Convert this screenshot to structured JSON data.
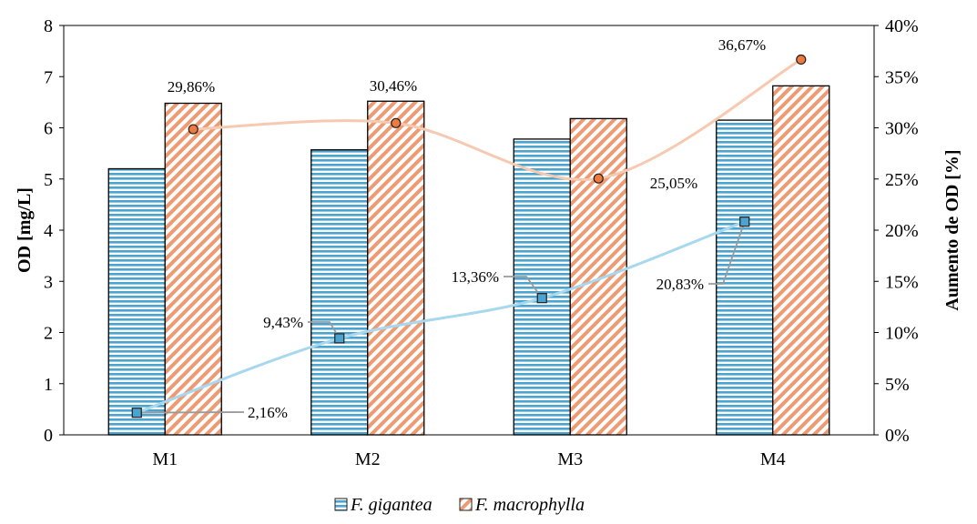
{
  "chart_data": {
    "type": "bar",
    "categories": [
      "M1",
      "M2",
      "M3",
      "M4"
    ],
    "y_left": {
      "label": "OD [mg/L]",
      "range": [
        0,
        8
      ],
      "ticks": [
        "0",
        "1",
        "2",
        "3",
        "4",
        "5",
        "6",
        "7",
        "8"
      ]
    },
    "y_right": {
      "label": "Aumento de OD [%]",
      "range": [
        0,
        40
      ],
      "ticks": [
        "0%",
        "5%",
        "10%",
        "15%",
        "20%",
        "25%",
        "30%",
        "35%",
        "40%"
      ]
    },
    "series": [
      {
        "name": "F. gigantea",
        "values": [
          5.2,
          5.57,
          5.78,
          6.15
        ],
        "percent_values": [
          2.16,
          9.43,
          13.36,
          20.83
        ],
        "percent_labels": [
          "2,16%",
          "9,43%",
          "13,36%",
          "20,83%"
        ],
        "bar_color": "#4BA3CF",
        "line_color": "#A8D8EE",
        "pattern": "horizontal-stripes"
      },
      {
        "name": "F. macrophylla",
        "values": [
          6.48,
          6.52,
          6.18,
          6.82
        ],
        "percent_values": [
          29.86,
          30.46,
          25.05,
          36.67
        ],
        "percent_labels": [
          "29,86%",
          "30,46%",
          "25,05%",
          "36,67%"
        ],
        "bar_color": "#EE9A73",
        "line_color": "#F6C9B1",
        "pattern": "diagonal-stripes"
      }
    ],
    "legend_position": "bottom-center",
    "grid": false
  }
}
